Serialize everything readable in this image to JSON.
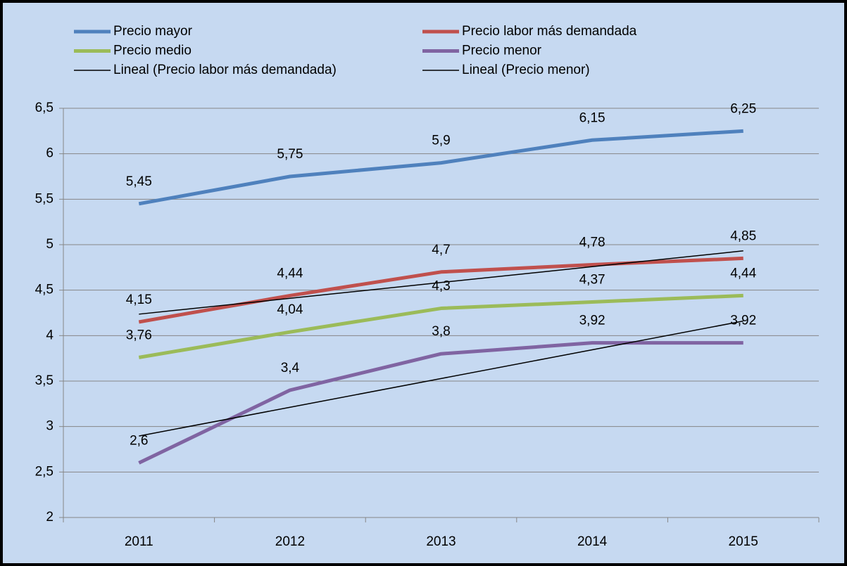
{
  "chart_data": {
    "type": "line",
    "categories": [
      "2011",
      "2012",
      "2013",
      "2014",
      "2015"
    ],
    "series": [
      {
        "name": "Precio mayor",
        "color": "#4f81bd",
        "values": [
          5.45,
          5.75,
          5.9,
          6.15,
          6.25
        ],
        "value_labels": [
          "5,45",
          "5,75",
          "5,9",
          "6,15",
          "6,25"
        ]
      },
      {
        "name": "Precio labor más demandada",
        "color": "#c0504d",
        "values": [
          4.15,
          4.44,
          4.7,
          4.78,
          4.85
        ],
        "value_labels": [
          "4,15",
          "4,44",
          "4,7",
          "4,78",
          "4,85"
        ]
      },
      {
        "name": "Precio medio",
        "color": "#9bbb59",
        "values": [
          3.76,
          4.04,
          4.3,
          4.37,
          4.44
        ],
        "value_labels": [
          "3,76",
          "4,04",
          "4,3",
          "4,37",
          "4,44"
        ]
      },
      {
        "name": "Precio menor",
        "color": "#8064a2",
        "values": [
          2.6,
          3.4,
          3.8,
          3.92,
          3.92
        ],
        "value_labels": [
          "2,6",
          "3,4",
          "3,8",
          "3,92",
          "3,92"
        ]
      },
      {
        "name": "Lineal (Precio labor más demandada)",
        "color": "#000000",
        "values": [
          4.236,
          4.41,
          4.584,
          4.758,
          4.932
        ]
      },
      {
        "name": "Lineal (Precio menor)",
        "color": "#000000",
        "values": [
          2.896,
          3.212,
          3.528,
          3.844,
          4.16
        ]
      }
    ],
    "ylim": [
      2,
      6.5
    ],
    "yticks": [
      2,
      {
        "value": 2.5,
        "label": "2,5"
      },
      3,
      {
        "value": 3.5,
        "label": "3,5"
      },
      4,
      {
        "value": 4.5,
        "label": "4,5"
      },
      5,
      {
        "value": 5.5,
        "label": "5,5"
      },
      6,
      {
        "value": 6.5,
        "label": "6,5"
      }
    ],
    "grid": true,
    "legend": "top"
  }
}
